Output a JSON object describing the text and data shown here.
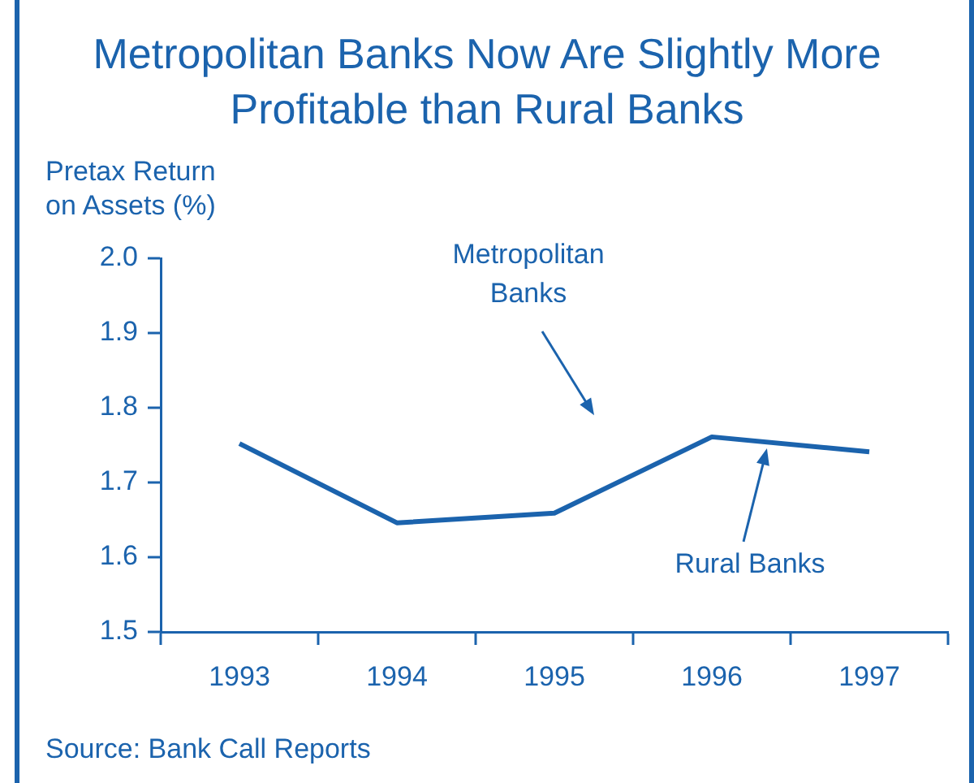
{
  "chart_data": {
    "type": "line",
    "title": "Metropolitan Banks Now Are Slightly More Profitable than Rural Banks",
    "ylabel": "Pretax Return on Assets (%)",
    "categories": [
      "1993",
      "1994",
      "1995",
      "1996",
      "1997"
    ],
    "series": [
      {
        "name": "Rural Banks",
        "color": "#1b63ad",
        "values": [
          1.752,
          1.646,
          1.659,
          1.761,
          1.741
        ]
      }
    ],
    "ylim": [
      1.5,
      2.0
    ],
    "yticks": [
      {
        "value": 1.5,
        "label": "1.5"
      },
      {
        "value": 1.6,
        "label": "1.6"
      },
      {
        "value": 1.7,
        "label": "1.7"
      },
      {
        "value": 1.8,
        "label": "1.8"
      },
      {
        "value": 1.9,
        "label": "1.9"
      },
      {
        "value": 2.0,
        "label": "2.0"
      }
    ],
    "annotations": [
      "Metropolitan Banks",
      "Source: Bank Call Reports"
    ],
    "grid": false,
    "legend": false,
    "marker": "none",
    "line_style": "solid"
  }
}
